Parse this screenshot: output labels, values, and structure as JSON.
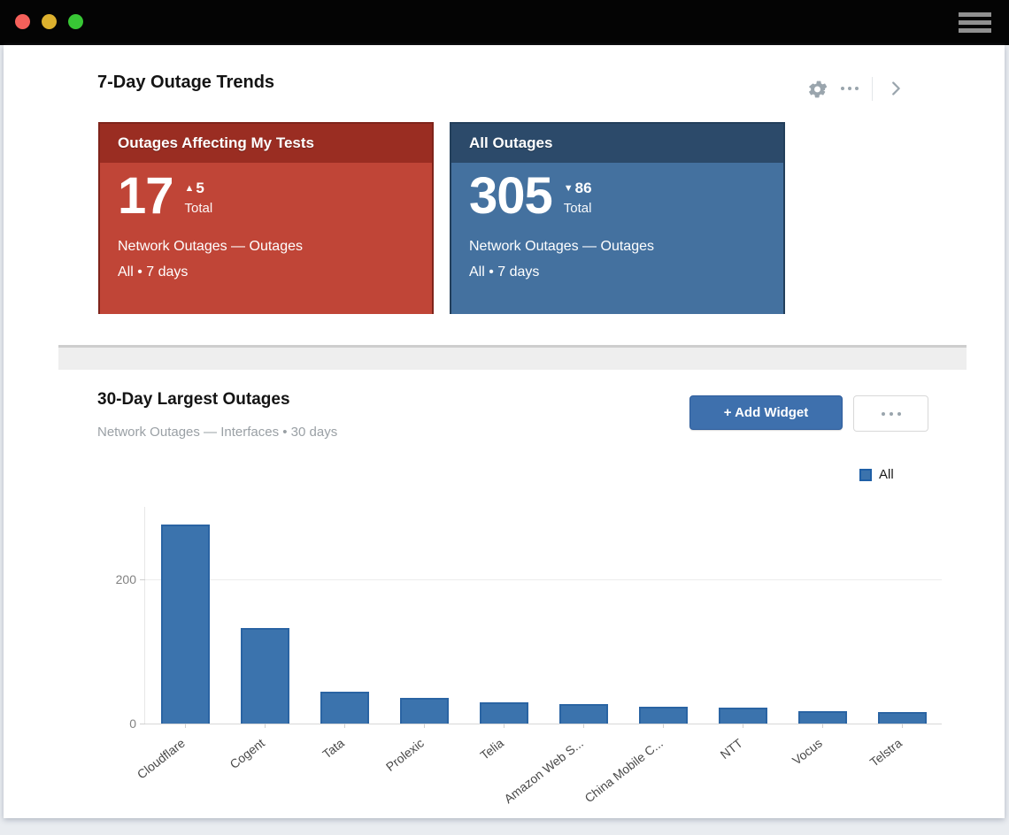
{
  "window": {
    "traffic_lights": [
      {
        "name": "close",
        "color": "#f5605a"
      },
      {
        "name": "minimize",
        "color": "#ddb12e"
      },
      {
        "name": "zoom",
        "color": "#38c735"
      }
    ],
    "menu_icon": "hamburger-icon"
  },
  "trends": {
    "title": "7-Day Outage Trends",
    "icons": [
      "gear-icon",
      "ellipsis-icon",
      "chevron-right-icon"
    ],
    "cards": [
      {
        "title": "Outages Affecting My Tests",
        "value": "17",
        "delta_direction": "up",
        "delta_value": "5",
        "delta_label": "Total",
        "line1": "Network Outages — Outages",
        "line2": "All • 7 days",
        "header_bg": "#9a2d22",
        "body_bg": "#c04537",
        "border": "#7f241b"
      },
      {
        "title": "All Outages",
        "value": "305",
        "delta_direction": "down",
        "delta_value": "86",
        "delta_label": "Total",
        "line1": "Network Outages — Outages",
        "line2": "All • 7 days",
        "header_bg": "#2c4a6a",
        "body_bg": "#44719f",
        "border": "#233f5b"
      }
    ]
  },
  "widget": {
    "title": "30-Day Largest Outages",
    "subtitle": "Network Outages — Interfaces • 30 days",
    "add_widget_label": "+ Add Widget",
    "add_widget_color": "#3e70ad",
    "more_icon": "ellipsis-icon"
  },
  "legend": {
    "label": "All",
    "swatch_color": "#3b73ad",
    "swatch_border": "#1f5fa6"
  },
  "chart_data": {
    "type": "bar",
    "title": "30-Day Largest Outages",
    "series_name": "All",
    "categories": [
      "Cloudflare",
      "Cogent",
      "Tata",
      "Prolexic",
      "Telia",
      "Amazon Web S...",
      "China Mobile C...",
      "NTT",
      "Vocus",
      "Telstra"
    ],
    "values": [
      275,
      132,
      44,
      36,
      30,
      27,
      23,
      22,
      17,
      16
    ],
    "xlabel": "",
    "ylabel": "",
    "yticks": [
      0,
      200
    ],
    "ylim": [
      0,
      300
    ],
    "grid": "horizontal",
    "legend_position": "top-right",
    "bar_color": "#3b73ad",
    "bar_border": "#2a64a3"
  }
}
